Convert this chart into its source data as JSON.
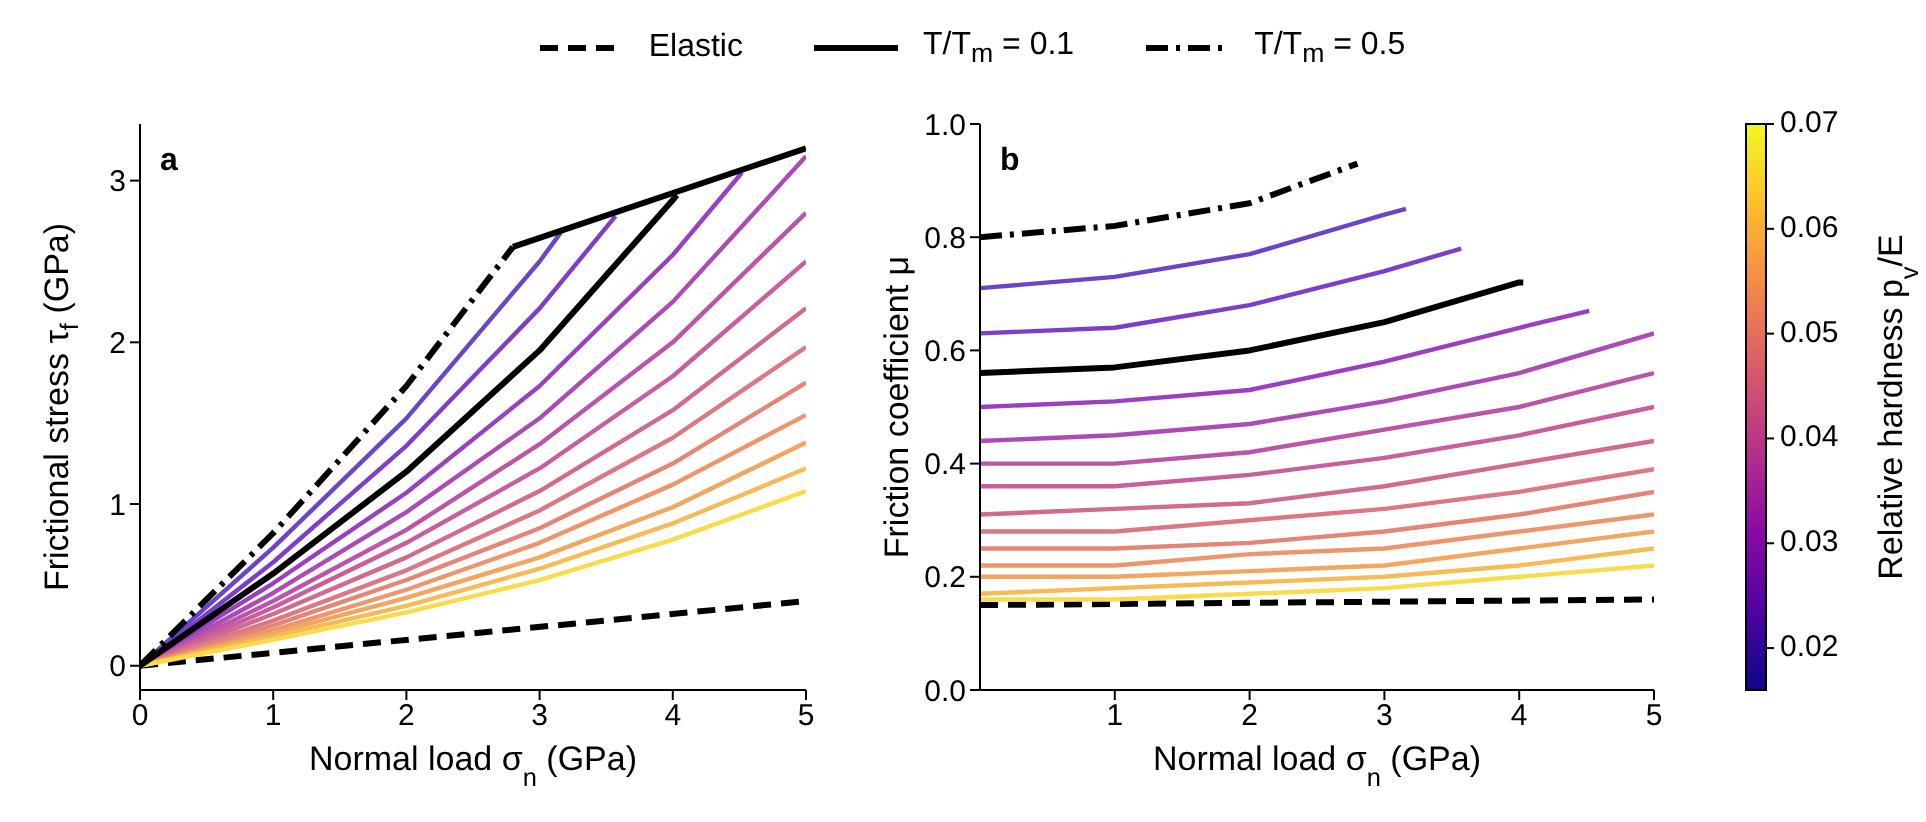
{
  "chart_data": [
    {
      "type": "line",
      "title": "a",
      "xlabel": "Normal load σ$_{n}$ (GPa)",
      "ylabel": "Frictional stress τ$_{f}$ (GPa)",
      "xlim": [
        0,
        5
      ],
      "xticks": [
        0,
        1,
        2,
        3,
        4,
        5
      ],
      "ylim": [
        -0.15,
        3.35
      ],
      "yticks": [
        0,
        1,
        2,
        3
      ],
      "grid": false,
      "legend": "top",
      "marker": "none",
      "x": [
        0,
        1,
        2,
        3,
        4,
        5
      ],
      "series": [
        {
          "name": "Elastic",
          "color": "#000000",
          "line_style": "dashed",
          "x": [
            0,
            5
          ],
          "values": [
            0,
            0.4
          ]
        },
        {
          "color": "#ab4bb6",
          "values": [
            0,
            0.45,
            0.95,
            1.53,
            2.25,
            3.15
          ]
        },
        {
          "color": "#bb55a8",
          "values": [
            0,
            0.4,
            0.84,
            1.37,
            2.0,
            2.8
          ]
        },
        {
          "color": "#c65f9c",
          "values": [
            0,
            0.36,
            0.76,
            1.22,
            1.79,
            2.5
          ]
        },
        {
          "color": "#d06b90",
          "values": [
            0,
            0.32,
            0.67,
            1.08,
            1.58,
            2.21
          ]
        },
        {
          "color": "#da7884",
          "values": [
            0,
            0.28,
            0.59,
            0.96,
            1.41,
            1.97
          ]
        },
        {
          "color": "#e38678",
          "values": [
            0,
            0.25,
            0.53,
            0.85,
            1.25,
            1.75
          ]
        },
        {
          "color": "#eb966c",
          "values": [
            0,
            0.22,
            0.47,
            0.76,
            1.12,
            1.55
          ]
        },
        {
          "color": "#f2a760",
          "values": [
            0,
            0.2,
            0.42,
            0.67,
            0.98,
            1.38
          ]
        },
        {
          "color": "#f6ba57",
          "values": [
            0,
            0.18,
            0.37,
            0.6,
            0.88,
            1.22
          ]
        },
        {
          "color": "#f8dc4c",
          "values": [
            0,
            0.16,
            0.33,
            0.53,
            0.78,
            1.08
          ]
        },
        {
          "color": "#9a3fbf",
          "x": [
            0,
            1,
            2,
            3,
            4,
            4.52
          ],
          "values": [
            0,
            0.51,
            1.07,
            1.73,
            2.54,
            3.05
          ]
        },
        {
          "color": "#7b3fc8",
          "x": [
            0,
            1,
            2,
            3,
            3.57
          ],
          "values": [
            0,
            0.64,
            1.36,
            2.21,
            2.78
          ]
        },
        {
          "color": "#6a45c8",
          "x": [
            0,
            1,
            2,
            3,
            3.16
          ],
          "values": [
            0,
            0.73,
            1.53,
            2.5,
            2.68
          ]
        },
        {
          "color": "#000000",
          "line_style": "solid",
          "x": [
            2.8,
            5
          ],
          "values": [
            2.59,
            3.2
          ]
        },
        {
          "name": "T/T$_{m}$ = 0.1",
          "color": "#000000",
          "line_style": "solid",
          "x": [
            0,
            1,
            2,
            3,
            4,
            4.03
          ],
          "values": [
            0,
            0.57,
            1.2,
            1.95,
            2.88,
            2.91
          ]
        },
        {
          "name": "T/T$_{m}$ = 0.5",
          "color": "#000000",
          "line_style": "dashdot",
          "x": [
            0,
            1,
            2,
            2.8
          ],
          "values": [
            0,
            0.82,
            1.73,
            2.59
          ]
        }
      ]
    },
    {
      "type": "line",
      "title": "b",
      "xlabel": "Normal load σ$_{n}$ (GPa)",
      "ylabel": "Friction coefficient μ",
      "clabel": "Relative hardness p$_{v}$/E",
      "clim": [
        0.016,
        0.07
      ],
      "cticks": [
        0.02,
        0.03,
        0.04,
        0.05,
        0.06,
        0.07
      ],
      "xlim": [
        0,
        5
      ],
      "xticks": [
        1,
        2,
        3,
        4,
        5
      ],
      "ylim": [
        0,
        1
      ],
      "yticks": [
        {
          "value": 0,
          "label": "0.0"
        },
        0.2,
        0.4,
        0.6,
        0.8,
        {
          "value": 1,
          "label": "1.0"
        }
      ],
      "grid": false,
      "legend": false,
      "marker": "none",
      "x": [
        0,
        1,
        2,
        3,
        4,
        5
      ],
      "series": [
        {
          "color": "#000000",
          "line_style": "dashed",
          "x": [
            0,
            5
          ],
          "values": [
            0.15,
            0.16
          ]
        },
        {
          "color": "#ab4bb6",
          "values": [
            0.44,
            0.45,
            0.47,
            0.51,
            0.56,
            0.63
          ]
        },
        {
          "color": "#bb55a8",
          "values": [
            0.4,
            0.4,
            0.42,
            0.46,
            0.5,
            0.56
          ]
        },
        {
          "color": "#c65f9c",
          "values": [
            0.36,
            0.36,
            0.38,
            0.41,
            0.45,
            0.5
          ]
        },
        {
          "color": "#d06b90",
          "values": [
            0.31,
            0.32,
            0.33,
            0.36,
            0.4,
            0.44
          ]
        },
        {
          "color": "#da7884",
          "values": [
            0.28,
            0.28,
            0.3,
            0.32,
            0.35,
            0.39
          ]
        },
        {
          "color": "#e38678",
          "values": [
            0.25,
            0.25,
            0.26,
            0.28,
            0.31,
            0.35
          ]
        },
        {
          "color": "#eb966c",
          "values": [
            0.22,
            0.22,
            0.24,
            0.25,
            0.28,
            0.31
          ]
        },
        {
          "color": "#f2a760",
          "values": [
            0.2,
            0.2,
            0.21,
            0.22,
            0.25,
            0.28
          ]
        },
        {
          "color": "#f6ba57",
          "values": [
            0.17,
            0.18,
            0.19,
            0.2,
            0.22,
            0.25
          ]
        },
        {
          "color": "#f8dc4c",
          "values": [
            0.16,
            0.16,
            0.17,
            0.18,
            0.2,
            0.22
          ]
        },
        {
          "color": "#9a3fbf",
          "x": [
            0,
            1,
            2,
            3,
            4,
            4.52
          ],
          "values": [
            0.5,
            0.51,
            0.53,
            0.58,
            0.64,
            0.67
          ]
        },
        {
          "color": "#7b3fc8",
          "x": [
            0,
            1,
            2,
            3,
            3.57
          ],
          "values": [
            0.63,
            0.64,
            0.68,
            0.74,
            0.78
          ]
        },
        {
          "color": "#6a45c8",
          "x": [
            0,
            1,
            2,
            3,
            3.16
          ],
          "values": [
            0.71,
            0.73,
            0.77,
            0.84,
            0.85
          ]
        },
        {
          "color": "#000000",
          "line_style": "solid",
          "x": [
            0,
            1,
            2,
            3,
            4,
            4.03
          ],
          "values": [
            0.56,
            0.57,
            0.6,
            0.65,
            0.72,
            0.72
          ]
        },
        {
          "color": "#000000",
          "line_style": "dashdot",
          "x": [
            0,
            1,
            2,
            2.8
          ],
          "values": [
            0.8,
            0.82,
            0.86,
            0.93
          ]
        }
      ]
    }
  ]
}
